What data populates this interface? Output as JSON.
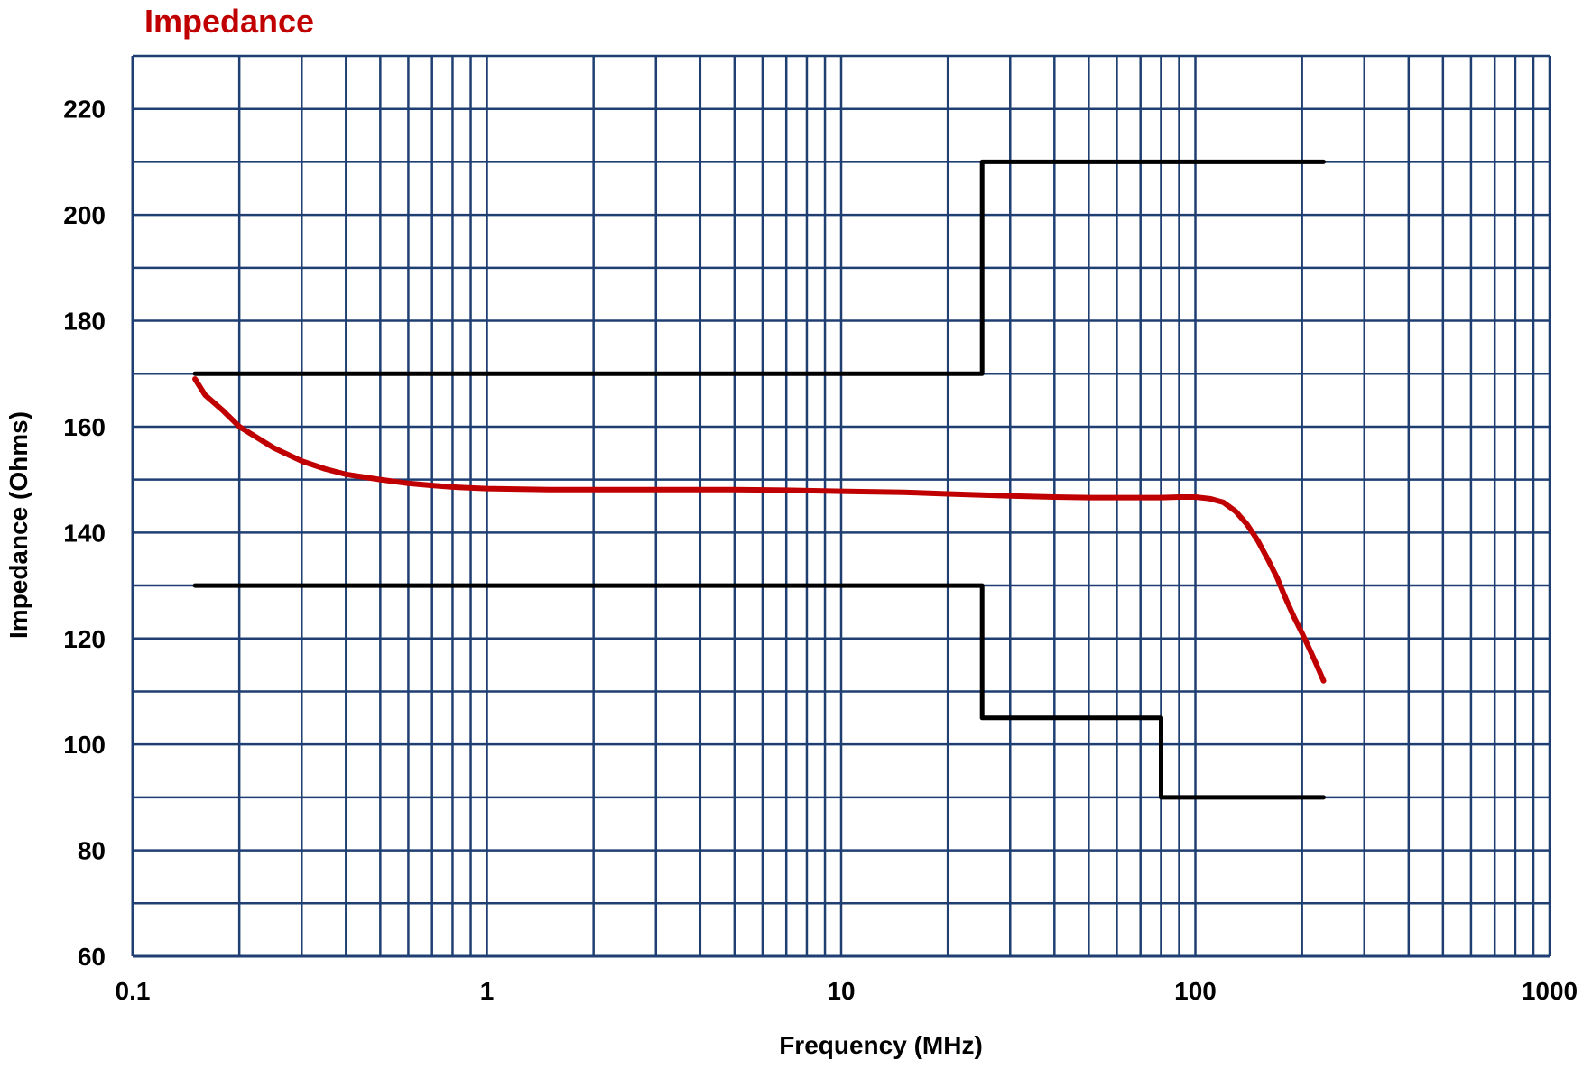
{
  "chart_data": {
    "type": "line",
    "title": "Impedance",
    "xlabel": "Frequency (MHz)",
    "ylabel": "Impedance (Ohms)",
    "x_scale": "log",
    "xlim": [
      0.1,
      1000
    ],
    "ylim": [
      60,
      230
    ],
    "x_ticks": [
      0.1,
      1,
      10,
      100,
      1000
    ],
    "x_tick_labels": [
      "0.1",
      "1",
      "10",
      "100",
      "1000"
    ],
    "y_ticks": [
      60,
      80,
      100,
      120,
      140,
      160,
      180,
      200,
      220
    ],
    "y_tick_labels": [
      "60",
      "80",
      "100",
      "120",
      "140",
      "160",
      "180",
      "200",
      "220"
    ],
    "y_minor_grid_step": 10,
    "grid": true,
    "grid_color": "#1f3f73",
    "title_color": "#c00000",
    "legend": "none",
    "series": [
      {
        "color": "#c00000",
        "x": [
          0.15,
          0.16,
          0.18,
          0.2,
          0.25,
          0.3,
          0.35,
          0.4,
          0.5,
          0.6,
          0.7,
          0.8,
          1,
          1.5,
          2,
          3,
          5,
          7,
          10,
          15,
          20,
          25,
          30,
          40,
          50,
          60,
          70,
          80,
          90,
          100,
          110,
          120,
          130,
          140,
          150,
          160,
          170,
          180,
          190,
          200,
          210,
          220,
          230
        ],
        "y": [
          169,
          166,
          163,
          160,
          156,
          153.5,
          152,
          151,
          150,
          149.3,
          148.9,
          148.6,
          148.3,
          148.1,
          148.1,
          148.1,
          148.1,
          148.0,
          147.8,
          147.6,
          147.3,
          147.1,
          146.9,
          146.7,
          146.6,
          146.6,
          146.6,
          146.6,
          146.7,
          146.7,
          146.4,
          145.7,
          144,
          141.5,
          138.5,
          135,
          131.5,
          127.5,
          124,
          121,
          118,
          115,
          112
        ]
      },
      {
        "color": "#000000",
        "x": [
          0.15,
          25,
          25,
          230
        ],
        "y": [
          170,
          170,
          210,
          210
        ]
      },
      {
        "color": "#000000",
        "x": [
          0.15,
          25,
          25,
          80,
          80,
          230
        ],
        "y": [
          130,
          130,
          105,
          105,
          90,
          90
        ]
      }
    ]
  }
}
